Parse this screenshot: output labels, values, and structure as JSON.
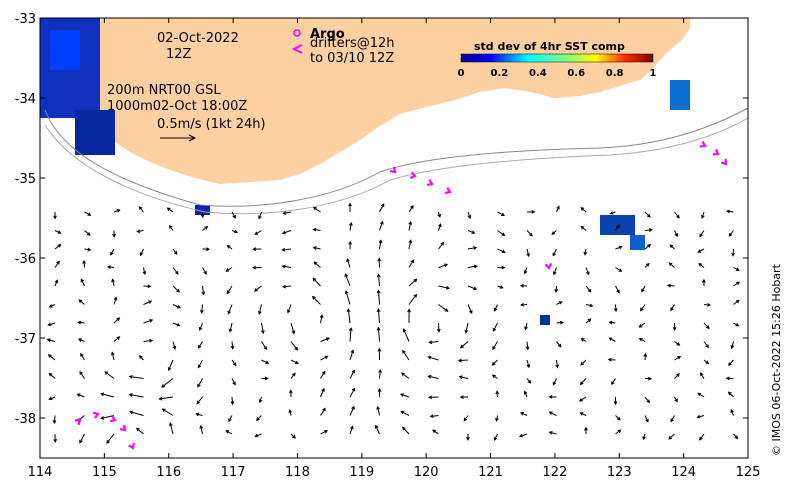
{
  "map": {
    "lon_ticks": [
      114,
      115,
      116,
      117,
      118,
      119,
      120,
      121,
      122,
      123,
      124,
      125
    ],
    "lat_ticks": [
      -33,
      -34,
      -35,
      -36,
      -37,
      -38
    ],
    "lon_range": [
      114,
      125
    ],
    "lat_range": [
      -33,
      -38.5
    ],
    "land_color": "#fdd0a2",
    "argo_color": "#ff00ff"
  },
  "annotations": {
    "date": "02-Oct-2022",
    "time": "12Z",
    "argo_label": "Argo",
    "drifters_label": "drifters@12h",
    "drifters_to": "to 03/10 12Z",
    "isobaths": "200m  NRT00 GSL",
    "isobaths2": "1000m02-Oct 18:00Z",
    "scale_label": "0.5m/s (1kt 24h)"
  },
  "colorbar": {
    "title": "std dev of 4hr SST comp",
    "ticks": [
      "0",
      "0.2",
      "0.4",
      "0.6",
      "0.8",
      "1"
    ]
  },
  "credit": "© IMOS 06-Oct-2022 15:26 Hobart"
}
